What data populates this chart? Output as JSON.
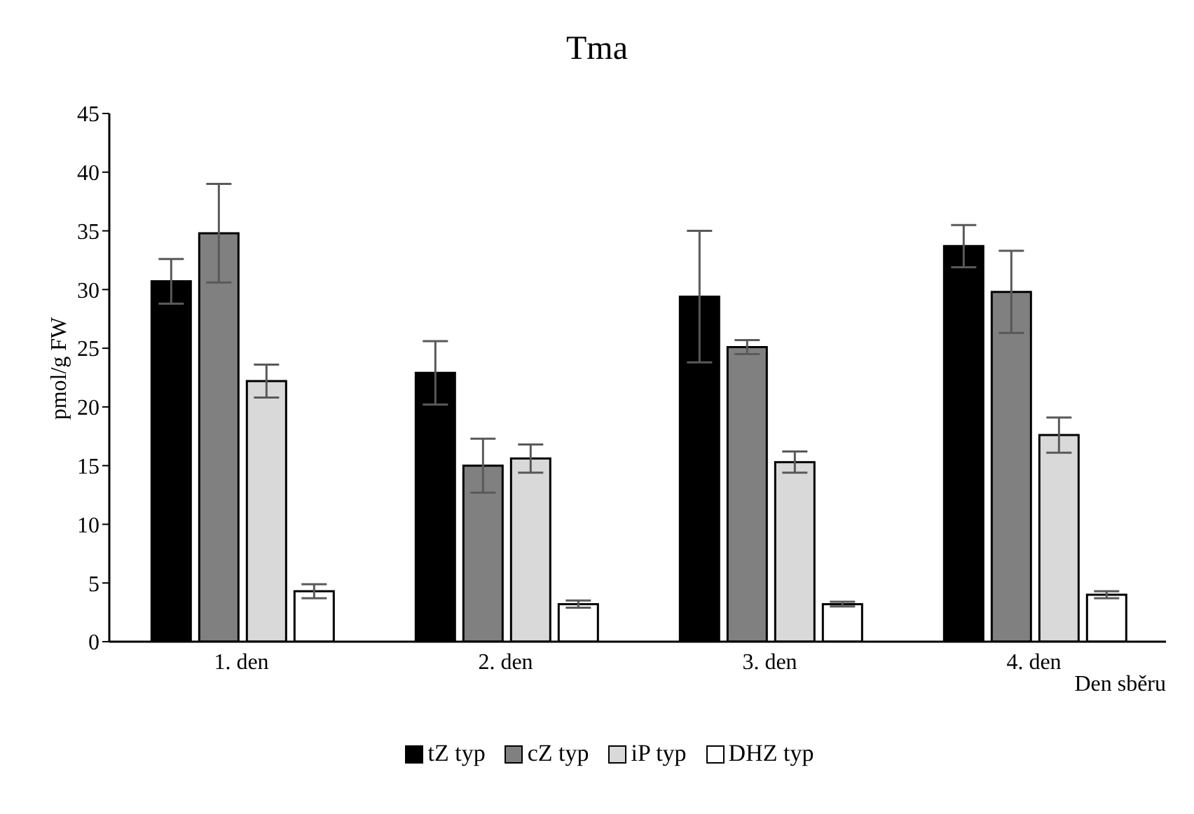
{
  "chart_data": {
    "type": "bar",
    "title": "Tma",
    "xlabel": "Den sběru",
    "ylabel": "pmol/g FW",
    "categories": [
      "1. den",
      "2. den",
      "3. den",
      "4. den"
    ],
    "series": [
      {
        "name": "tZ typ",
        "color": "#000000",
        "values": [
          30.7,
          22.9,
          29.4,
          33.7
        ],
        "errors": [
          1.9,
          2.7,
          5.6,
          1.8
        ]
      },
      {
        "name": "cZ typ",
        "color": "#808080",
        "values": [
          34.8,
          15.0,
          25.1,
          29.8
        ],
        "errors": [
          4.2,
          2.3,
          0.6,
          3.5
        ]
      },
      {
        "name": "iP typ",
        "color": "#d9d9d9",
        "values": [
          22.2,
          15.6,
          15.3,
          17.6
        ],
        "errors": [
          1.4,
          1.2,
          0.9,
          1.5
        ]
      },
      {
        "name": "DHZ typ",
        "color": "#ffffff",
        "values": [
          4.3,
          3.2,
          3.2,
          4.0
        ],
        "errors": [
          0.6,
          0.3,
          0.2,
          0.3
        ]
      }
    ],
    "ylim": [
      0,
      45
    ],
    "yticks": [
      0,
      5,
      10,
      15,
      20,
      25,
      30,
      35,
      40,
      45
    ],
    "grid": false,
    "legend": "bottom"
  }
}
